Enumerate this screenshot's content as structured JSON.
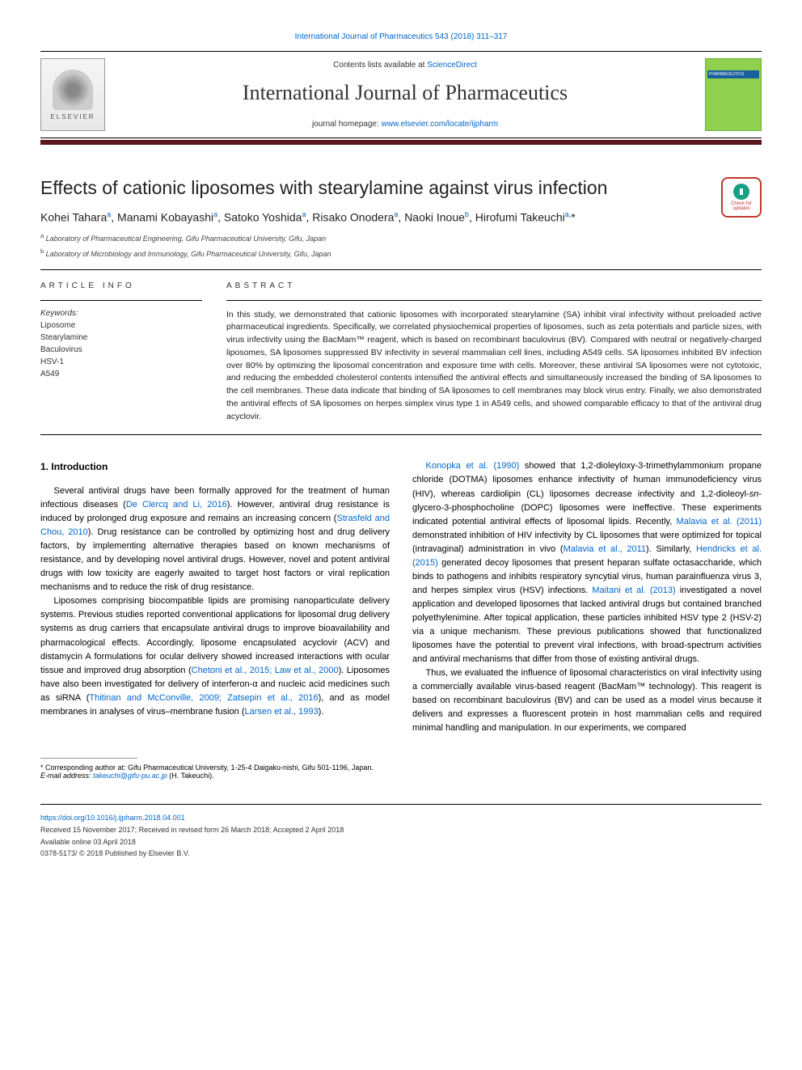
{
  "header": {
    "top_link": "International Journal of Pharmaceutics 543 (2018) 311–317",
    "contents_prefix": "Contents lists available at ",
    "contents_link": "ScienceDirect",
    "journal_name": "International Journal of Pharmaceutics",
    "homepage_prefix": "journal homepage: ",
    "homepage_link": "www.elsevier.com/locate/ijpharm",
    "elsevier_label": "ELSEVIER",
    "cover_label": "PHARMACEUTICS",
    "accent_color": "#5a1520"
  },
  "check_updates": {
    "line1": "Check for",
    "line2": "updates"
  },
  "article": {
    "title": "Effects of cationic liposomes with stearylamine against virus infection",
    "authors_html": "Kohei Tahara<sup>a</sup>, Manami Kobayashi<sup>a</sup>, Satoko Yoshida<sup>a</sup>, Risako Onodera<sup>a</sup>, Naoki Inoue<sup>b</sup>, Hirofumi Takeuchi<sup>a,</sup>*",
    "affiliations": [
      {
        "sup": "a",
        "text": "Laboratory of Pharmaceutical Engineering, Gifu Pharmaceutical University, Gifu, Japan"
      },
      {
        "sup": "b",
        "text": "Laboratory of Microbiology and Immunology, Gifu Pharmaceutical University, Gifu, Japan"
      }
    ]
  },
  "info_labels": {
    "article_info": "ARTICLE INFO",
    "abstract": "ABSTRACT",
    "keywords_label": "Keywords:"
  },
  "keywords": [
    "Liposome",
    "Stearylamine",
    "Baculovirus",
    "HSV-1",
    "A549"
  ],
  "abstract": "In this study, we demonstrated that cationic liposomes with incorporated stearylamine (SA) inhibit viral infectivity without preloaded active pharmaceutical ingredients. Specifically, we correlated physiochemical properties of liposomes, such as zeta potentials and particle sizes, with virus infectivity using the BacMam™ reagent, which is based on recombinant baculovirus (BV). Compared with neutral or negatively-charged liposomes, SA liposomes suppressed BV infectivity in several mammalian cell lines, including A549 cells. SA liposomes inhibited BV infection over 80% by optimizing the liposomal concentration and exposure time with cells. Moreover, these antiviral SA liposomes were not cytotoxic, and reducing the embedded cholesterol contents intensified the antiviral effects and simultaneously increased the binding of SA liposomes to the cell membranes. These data indicate that binding of SA liposomes to cell membranes may block virus entry. Finally, we also demonstrated the antiviral effects of SA liposomes on herpes simplex virus type 1 in A549 cells, and showed comparable efficacy to that of the antiviral drug acyclovir.",
  "body": {
    "section_number": "1.",
    "section_title": "Introduction",
    "paragraphs": [
      "Several antiviral drugs have been formally approved for the treatment of human infectious diseases (<span class=\"cite\">De Clercq and Li, 2016</span>). However, antiviral drug resistance is induced by prolonged drug exposure and remains an increasing concern (<span class=\"cite\">Strasfeld and Chou, 2010</span>). Drug resistance can be controlled by optimizing host and drug delivery factors, by implementing alternative therapies based on known mechanisms of resistance, and by developing novel antiviral drugs. However, novel and potent antiviral drugs with low toxicity are eagerly awaited to target host factors or viral replication mechanisms and to reduce the risk of drug resistance.",
      "Liposomes comprising biocompatible lipids are promising nanoparticulate delivery systems. Previous studies reported conventional applications for liposomal drug delivery systems as drug carriers that encapsulate antiviral drugs to improve bioavailability and pharmacological effects. Accordingly, liposome encapsulated acyclovir (ACV) and distamycin A formulations for ocular delivery showed increased interactions with ocular tissue and improved drug absorption (<span class=\"cite\">Chetoni et al., 2015; Law et al., 2000</span>). Liposomes have also been investigated for delivery of interferon-α and nucleic acid medicines such as siRNA (<span class=\"cite\">Thitinan and McConville, 2009; Zatsepin et al., 2016</span>), and as model membranes in analyses of virus–membrane fusion (<span class=\"cite\">Larsen et al., 1993</span>).",
      "<span class=\"cite\">Konopka et al. (1990)</span> showed that 1,2-dioleyloxy-3-trimethylammonium propane chloride (DOTMA) liposomes enhance infectivity of human immunodeficiency virus (HIV), whereas cardiolipin (CL) liposomes decrease infectivity and 1,2-dioleoyl-<i>sn</i>-glycero-3-phosphocholine (DOPC) liposomes were ineffective. These experiments indicated potential antiviral effects of liposomal lipids. Recently, <span class=\"cite\">Malavia et al. (2011)</span> demonstrated inhibition of HIV infectivity by CL liposomes that were optimized for topical (intravaginal) administration in vivo (<span class=\"cite\">Malavia et al., 2011</span>). Similarly, <span class=\"cite\">Hendricks et al. (2015)</span> generated decoy liposomes that present heparan sulfate octasaccharide, which binds to pathogens and inhibits respiratory syncytial virus, human parainfluenza virus 3, and herpes simplex virus (HSV) infections. <span class=\"cite\">Maitani et al. (2013)</span> investigated a novel application and developed liposomes that lacked antiviral drugs but contained branched polyethylenimine. After topical application, these particles inhibited HSV type 2 (HSV-2) via a unique mechanism. These previous publications showed that functionalized liposomes have the potential to prevent viral infections, with broad-spectrum activities and antiviral mechanisms that differ from those of existing antiviral drugs.",
      "Thus, we evaluated the influence of liposomal characteristics on viral infectivity using a commercially available virus-based reagent (BacMam™ technology). This reagent is based on recombinant baculovirus (BV) and can be used as a model virus because it delivers and expresses a fluorescent protein in host mammalian cells and required minimal handling and manipulation. In our experiments, we compared"
    ]
  },
  "footer": {
    "corr_label": "* Corresponding author at: Gifu Pharmaceutical University, 1-25-4 Daigaku-nishi, Gifu 501-1196, Japan.",
    "email_label": "E-mail address: ",
    "email": "takeuchi@gifu-pu.ac.jp",
    "email_suffix": " (H. Takeuchi).",
    "doi": "https://doi.org/10.1016/j.ijpharm.2018.04.001",
    "received": "Received 15 November 2017; Received in revised form 26 March 2018; Accepted 2 April 2018",
    "available": "Available online 03 April 2018",
    "copyright": "0378-5173/ © 2018 Published by Elsevier B.V."
  },
  "colors": {
    "link": "#0066cc",
    "text": "#222222",
    "accent": "#5a1520",
    "cover": "#8fd14f"
  },
  "typography": {
    "title_fontsize": 23,
    "journal_fontsize": 26,
    "body_fontsize": 11,
    "abstract_fontsize": 10.5,
    "footer_fontsize": 9
  }
}
